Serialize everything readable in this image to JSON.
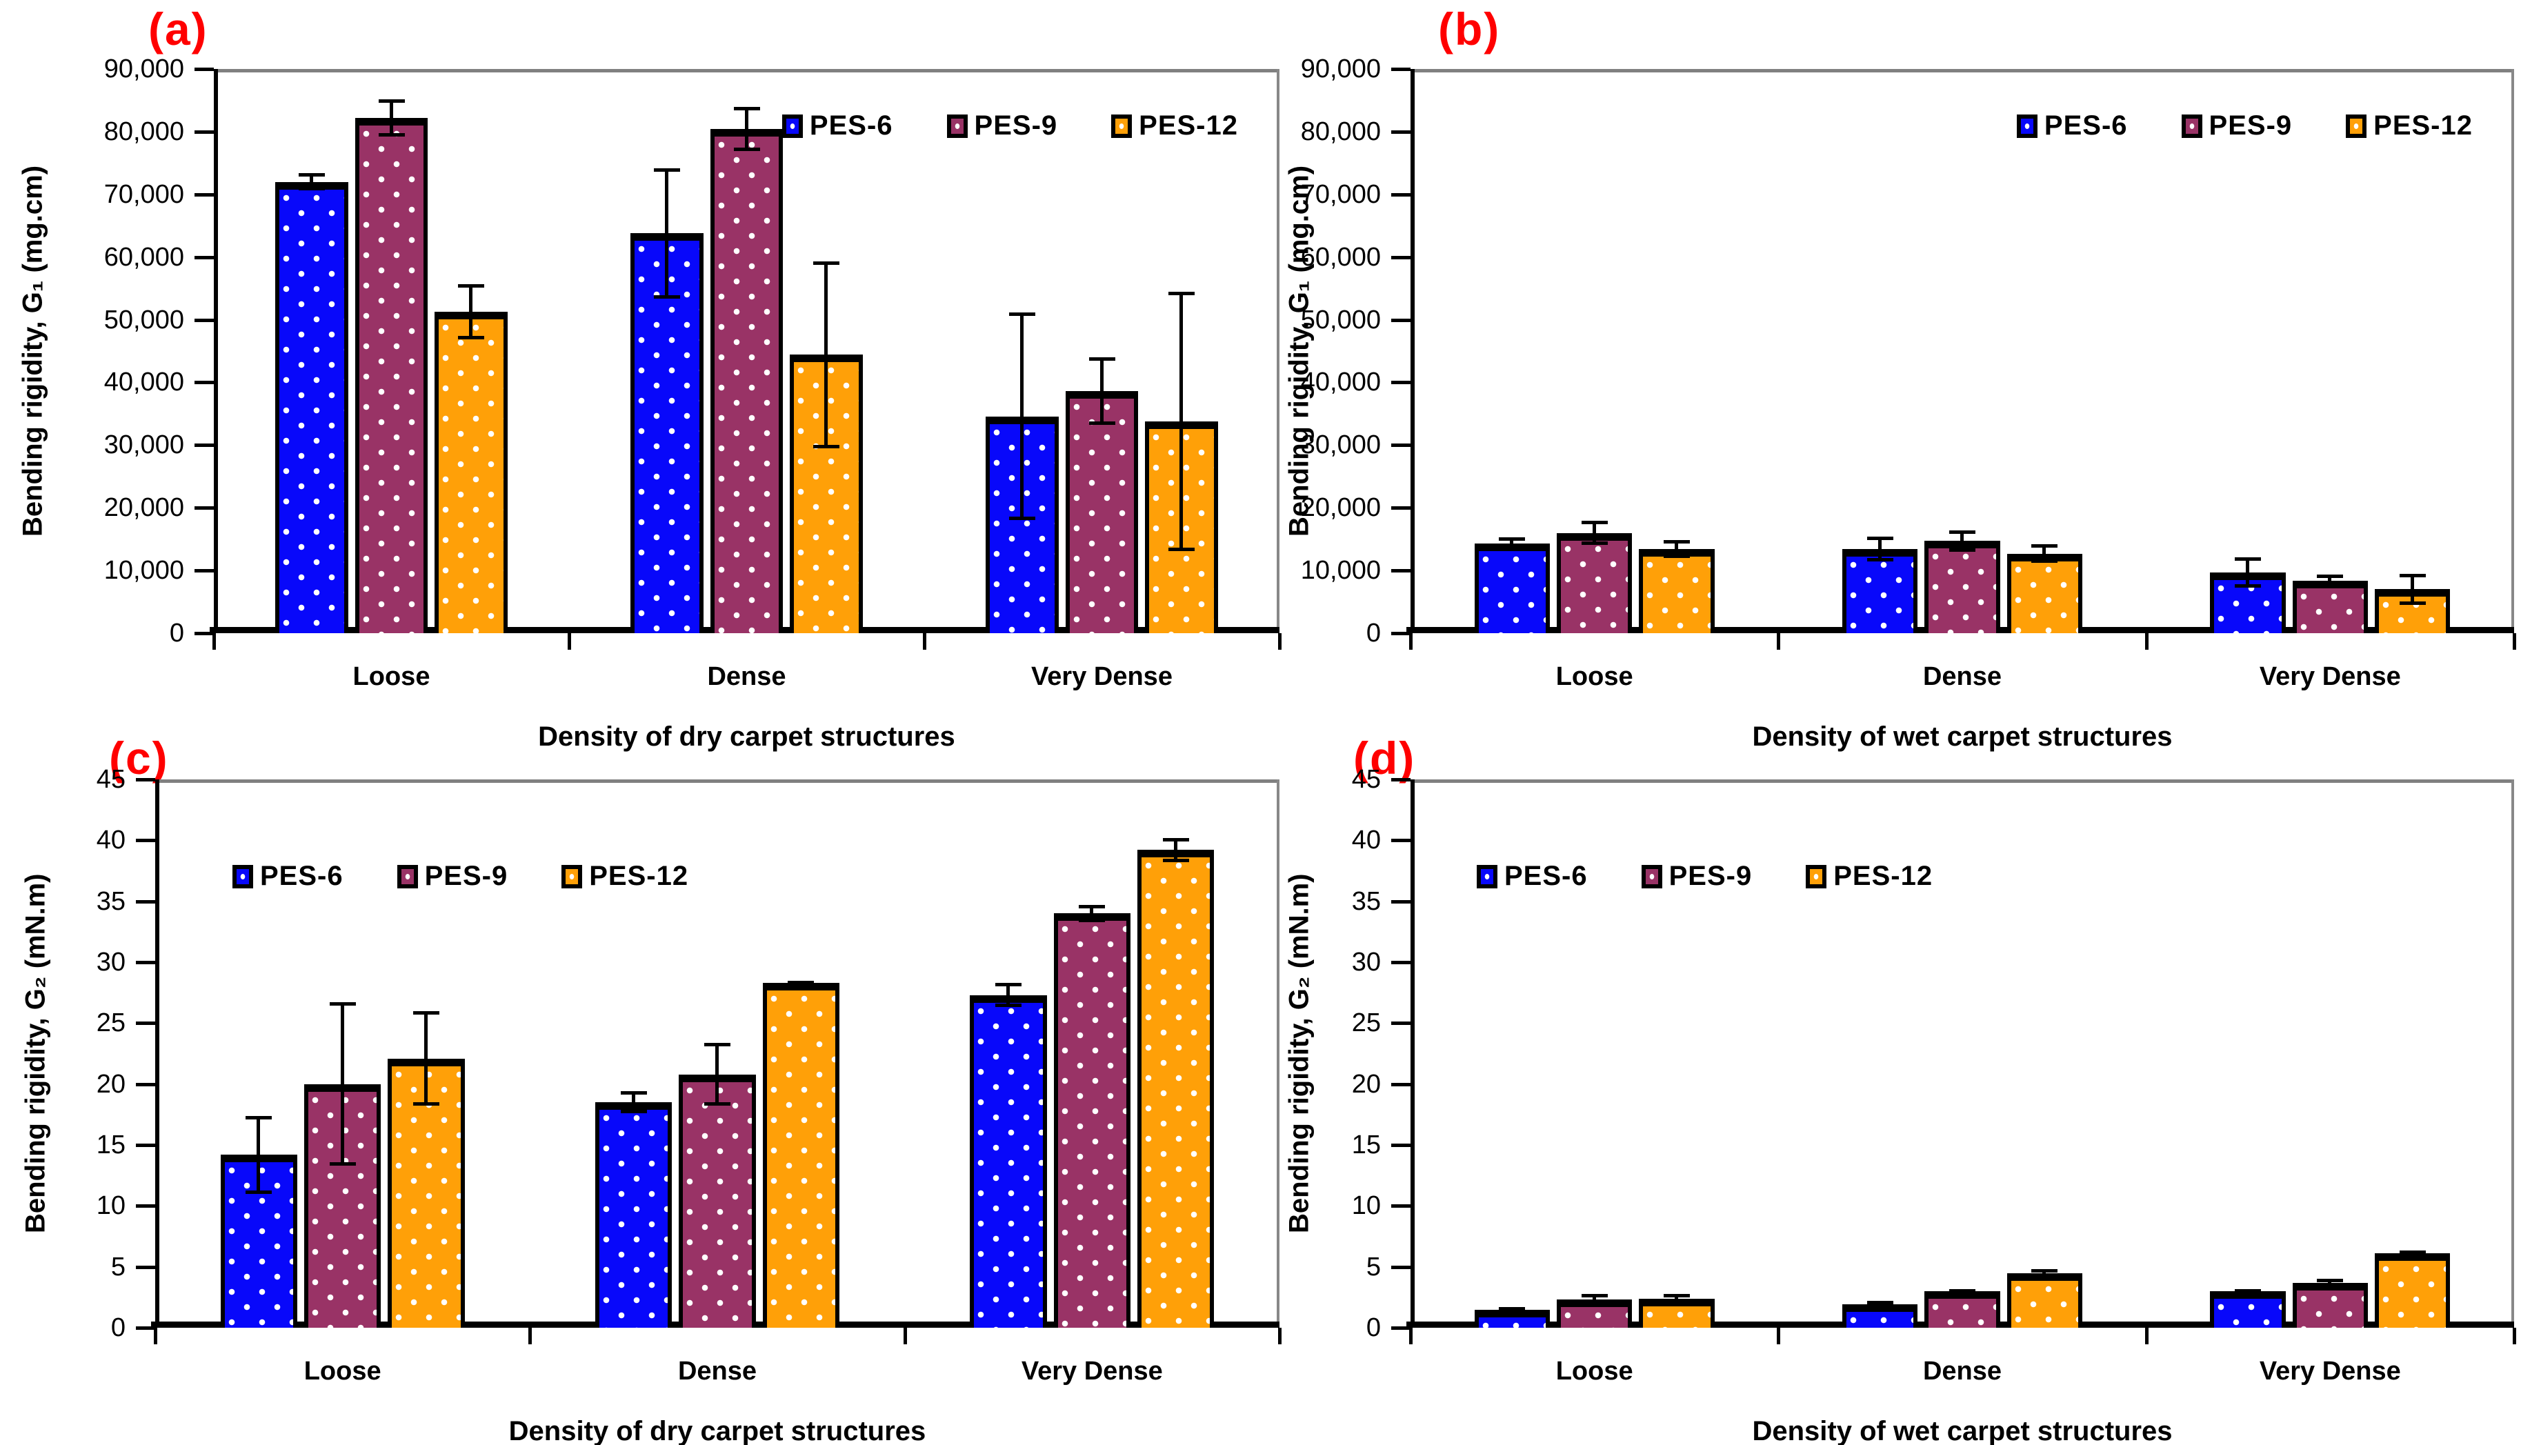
{
  "figure": {
    "series": [
      {
        "name": "PES-6",
        "color": "#0808fa"
      },
      {
        "name": "PES-9",
        "color": "#993366"
      },
      {
        "name": "PES-12",
        "color": "#ffa008"
      }
    ]
  },
  "chart_data": [
    {
      "id": "a",
      "type": "bar",
      "title": "(a)",
      "xlabel": "Density of dry carpet structures",
      "ylabel": "Bending rigidity, G₁ (mg.cm)",
      "ylim": [
        0,
        90000
      ],
      "ytick_step": 10000,
      "grid": false,
      "ytick_labels": [
        "0",
        "10,000",
        "20,000",
        "30,000",
        "40,000",
        "50,000",
        "60,000",
        "70,000",
        "80,000",
        "90,000"
      ],
      "categories": [
        "Loose",
        "Dense",
        "Very Dense"
      ],
      "legend_position": "top-right",
      "series": [
        {
          "name": "PES-6",
          "values": [
            72000,
            63800,
            34600
          ],
          "errors": [
            1400,
            10400,
            16600
          ]
        },
        {
          "name": "PES-9",
          "values": [
            82200,
            80400,
            38600
          ],
          "errors": [
            3000,
            3500,
            5400
          ]
        },
        {
          "name": "PES-12",
          "values": [
            51300,
            44400,
            33800
          ],
          "errors": [
            4400,
            14900,
            20700
          ]
        }
      ]
    },
    {
      "id": "b",
      "type": "bar",
      "title": "(b)",
      "xlabel": "Density of wet carpet structures",
      "ylabel": "Bending rigidity, G₁ (mg.cm)",
      "ylim": [
        0,
        90000
      ],
      "ytick_step": 10000,
      "grid": false,
      "ytick_labels": [
        "0",
        "10,000",
        "20,000",
        "30,000",
        "40,000",
        "50,000",
        "60,000",
        "70,000",
        "80,000",
        "90,000"
      ],
      "categories": [
        "Loose",
        "Dense",
        "Very Dense"
      ],
      "legend_position": "top-right",
      "series": [
        {
          "name": "PES-6",
          "values": [
            14300,
            13400,
            9700
          ],
          "errors": [
            1000,
            2000,
            2400
          ]
        },
        {
          "name": "PES-9",
          "values": [
            16000,
            14700,
            8400
          ],
          "errors": [
            1900,
            1700,
            900
          ]
        },
        {
          "name": "PES-12",
          "values": [
            13400,
            12700,
            7000
          ],
          "errors": [
            1400,
            1500,
            2500
          ]
        }
      ]
    },
    {
      "id": "c",
      "type": "bar",
      "title": "(c)",
      "xlabel": "Density of dry carpet structures",
      "ylabel": "Bending rigidity, G₂ (mN.m)",
      "ylim": [
        0,
        45
      ],
      "ytick_step": 5,
      "grid": false,
      "ytick_labels": [
        "0",
        "5",
        "10",
        "15",
        "20",
        "25",
        "30",
        "35",
        "40",
        "45"
      ],
      "categories": [
        "Loose",
        "Dense",
        "Very Dense"
      ],
      "legend_position": "top-left",
      "series": [
        {
          "name": "PES-6",
          "values": [
            14.2,
            18.5,
            27.3
          ],
          "errors": [
            3.2,
            0.9,
            1.0
          ]
        },
        {
          "name": "PES-9",
          "values": [
            20.0,
            20.8,
            34.0
          ],
          "errors": [
            6.7,
            2.6,
            0.7
          ]
        },
        {
          "name": "PES-12",
          "values": [
            22.1,
            28.3,
            39.2
          ],
          "errors": [
            3.9,
            0.2,
            1.0
          ]
        }
      ]
    },
    {
      "id": "d",
      "type": "bar",
      "title": "(d)",
      "xlabel": "Density of wet carpet structures",
      "ylabel": "Bending rigidity, G₂ (mN.m)",
      "ylim": [
        0,
        45
      ],
      "ytick_step": 5,
      "grid": false,
      "ytick_labels": [
        "0",
        "5",
        "10",
        "15",
        "20",
        "25",
        "30",
        "35",
        "40",
        "45"
      ],
      "categories": [
        "Loose",
        "Dense",
        "Very Dense"
      ],
      "legend_position": "top-left",
      "series": [
        {
          "name": "PES-6",
          "values": [
            1.5,
            1.9,
            3.0
          ],
          "errors": [
            0.2,
            0.3,
            0.1
          ]
        },
        {
          "name": "PES-9",
          "values": [
            2.3,
            3.0,
            3.7
          ],
          "errors": [
            0.5,
            0.15,
            0.3
          ]
        },
        {
          "name": "PES-12",
          "values": [
            2.4,
            4.5,
            6.1
          ],
          "errors": [
            0.4,
            0.3,
            0.25
          ]
        }
      ]
    }
  ]
}
